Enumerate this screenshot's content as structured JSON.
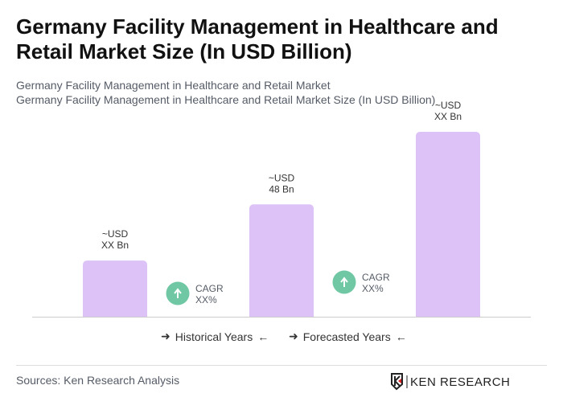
{
  "title": "Germany Facility Management in Healthcare and Retail Market Size (In USD Billion)",
  "subtitle1": "Germany Facility Management in Healthcare and Retail Market",
  "subtitle2": "Germany Facility Management in Healthcare and Retail Market Size (In USD Billion)",
  "chart_data": {
    "type": "bar",
    "categories": [
      "",
      "",
      ""
    ],
    "values": [
      24,
      48,
      79
    ],
    "data_labels": [
      [
        "~USD",
        "XX Bn"
      ],
      [
        "~USD",
        "48 Bn"
      ],
      [
        "~USD",
        "XX Bn"
      ]
    ],
    "bar_color": "#dcc2f7",
    "cagr": [
      {
        "label": "CAGR",
        "value": "XX%"
      },
      {
        "label": "CAGR",
        "value": "XX%"
      }
    ],
    "cagr_color": "#6fc7a3",
    "grid": false
  },
  "legend": {
    "historical": "Historical Years",
    "forecasted": "Forecasted Years"
  },
  "footer": {
    "sources": "Sources: Ken Research Analysis",
    "logo_text": "KEN RESEARCH"
  }
}
